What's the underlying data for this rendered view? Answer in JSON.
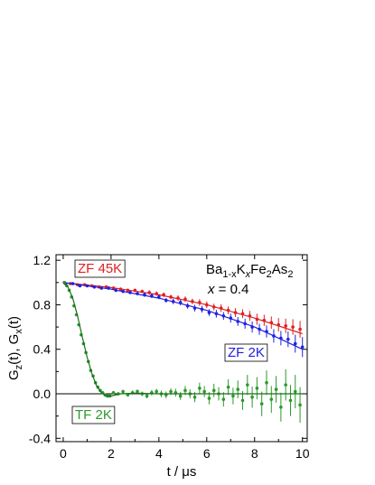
{
  "chart_data": {
    "type": "scatter",
    "xlabel": "t / μs",
    "ylabel": "G_z(t), G_x(t)",
    "xlim": [
      -0.3,
      10.2
    ],
    "ylim": [
      -0.43,
      1.25
    ],
    "x_ticks": [
      0,
      2,
      4,
      6,
      8,
      10
    ],
    "y_ticks": [
      -0.4,
      0.0,
      0.4,
      0.8,
      1.2
    ],
    "x_tick_labels": [
      "0",
      "2",
      "4",
      "6",
      "8",
      "10"
    ],
    "y_tick_labels": [
      "-0.4",
      "0.0",
      "0.4",
      "0.8",
      "1.2"
    ],
    "zero_line": true,
    "compound_label": "Ba1-xKxFe2As2",
    "doping_label": "x = 0.4",
    "series": [
      {
        "name": "ZF 45K",
        "color": "#e02020",
        "points": [
          [
            0.05,
            1.0
          ],
          [
            0.3,
            0.99
          ],
          [
            0.6,
            0.98
          ],
          [
            0.9,
            0.98
          ],
          [
            1.2,
            0.97
          ],
          [
            1.5,
            0.96
          ],
          [
            1.8,
            0.96
          ],
          [
            2.1,
            0.95
          ],
          [
            2.4,
            0.94
          ],
          [
            2.7,
            0.93
          ],
          [
            3.0,
            0.93
          ],
          [
            3.3,
            0.92
          ],
          [
            3.6,
            0.91
          ],
          [
            3.9,
            0.9
          ],
          [
            4.2,
            0.89
          ],
          [
            4.5,
            0.87
          ],
          [
            4.8,
            0.86
          ],
          [
            5.1,
            0.85
          ],
          [
            5.4,
            0.83
          ],
          [
            5.7,
            0.82
          ],
          [
            6.0,
            0.8
          ],
          [
            6.3,
            0.78
          ],
          [
            6.6,
            0.77
          ],
          [
            6.9,
            0.75
          ],
          [
            7.2,
            0.73
          ],
          [
            7.5,
            0.72
          ],
          [
            7.8,
            0.7
          ],
          [
            8.1,
            0.67
          ],
          [
            8.4,
            0.66
          ],
          [
            8.7,
            0.64
          ],
          [
            9.0,
            0.62
          ],
          [
            9.3,
            0.61
          ],
          [
            9.6,
            0.6
          ],
          [
            9.9,
            0.58
          ]
        ],
        "errors": [
          0.01,
          0.01,
          0.01,
          0.01,
          0.01,
          0.01,
          0.01,
          0.01,
          0.015,
          0.015,
          0.015,
          0.015,
          0.02,
          0.02,
          0.02,
          0.02,
          0.025,
          0.025,
          0.025,
          0.03,
          0.03,
          0.03,
          0.035,
          0.035,
          0.04,
          0.04,
          0.045,
          0.05,
          0.05,
          0.055,
          0.06,
          0.065,
          0.07,
          0.075
        ],
        "fit": [
          [
            0,
            1.0
          ],
          [
            2,
            0.955
          ],
          [
            4,
            0.89
          ],
          [
            6,
            0.8
          ],
          [
            8,
            0.68
          ],
          [
            10,
            0.54
          ]
        ]
      },
      {
        "name": "ZF 2K",
        "color": "#2020e0",
        "points": [
          [
            0.1,
            0.99
          ],
          [
            0.4,
            0.99
          ],
          [
            0.7,
            0.97
          ],
          [
            1.0,
            0.97
          ],
          [
            1.3,
            0.96
          ],
          [
            1.6,
            0.95
          ],
          [
            1.9,
            0.95
          ],
          [
            2.2,
            0.93
          ],
          [
            2.5,
            0.92
          ],
          [
            2.8,
            0.91
          ],
          [
            3.1,
            0.9
          ],
          [
            3.4,
            0.89
          ],
          [
            3.7,
            0.88
          ],
          [
            4.0,
            0.87
          ],
          [
            4.3,
            0.84
          ],
          [
            4.6,
            0.83
          ],
          [
            4.9,
            0.82
          ],
          [
            5.2,
            0.79
          ],
          [
            5.5,
            0.77
          ],
          [
            5.8,
            0.76
          ],
          [
            6.1,
            0.73
          ],
          [
            6.4,
            0.72
          ],
          [
            6.7,
            0.7
          ],
          [
            7.0,
            0.68
          ],
          [
            7.3,
            0.65
          ],
          [
            7.6,
            0.63
          ],
          [
            7.9,
            0.6
          ],
          [
            8.2,
            0.58
          ],
          [
            8.5,
            0.56
          ],
          [
            8.8,
            0.52
          ],
          [
            9.1,
            0.5
          ],
          [
            9.4,
            0.49
          ],
          [
            9.7,
            0.45
          ],
          [
            10.0,
            0.42
          ]
        ],
        "errors": [
          0.01,
          0.01,
          0.01,
          0.01,
          0.01,
          0.01,
          0.01,
          0.015,
          0.015,
          0.015,
          0.015,
          0.02,
          0.02,
          0.02,
          0.02,
          0.025,
          0.025,
          0.025,
          0.03,
          0.03,
          0.03,
          0.035,
          0.035,
          0.04,
          0.04,
          0.045,
          0.05,
          0.05,
          0.055,
          0.06,
          0.065,
          0.07,
          0.08,
          0.09
        ],
        "fit": [
          [
            0,
            1.0
          ],
          [
            2,
            0.94
          ],
          [
            4,
            0.86
          ],
          [
            6,
            0.75
          ],
          [
            8,
            0.6
          ],
          [
            10,
            0.4
          ]
        ]
      },
      {
        "name": "TF 2K",
        "color": "#2a9a2a",
        "points": [
          [
            0.05,
            1.0
          ],
          [
            0.15,
            0.97
          ],
          [
            0.25,
            0.93
          ],
          [
            0.35,
            0.87
          ],
          [
            0.45,
            0.79
          ],
          [
            0.55,
            0.71
          ],
          [
            0.65,
            0.62
          ],
          [
            0.75,
            0.53
          ],
          [
            0.85,
            0.45
          ],
          [
            0.95,
            0.37
          ],
          [
            1.05,
            0.29
          ],
          [
            1.15,
            0.21
          ],
          [
            1.25,
            0.16
          ],
          [
            1.35,
            0.1
          ],
          [
            1.45,
            0.06
          ],
          [
            1.55,
            0.03
          ],
          [
            1.65,
            0.01
          ],
          [
            1.75,
            -0.01
          ],
          [
            1.85,
            -0.02
          ],
          [
            1.95,
            -0.02
          ],
          [
            2.1,
            0.01
          ],
          [
            2.3,
            0.0
          ],
          [
            2.5,
            0.02
          ],
          [
            2.7,
            -0.01
          ],
          [
            2.9,
            0.01
          ],
          [
            3.1,
            0.02
          ],
          [
            3.3,
            0.0
          ],
          [
            3.5,
            -0.02
          ],
          [
            3.7,
            0.01
          ],
          [
            3.9,
            0.02
          ],
          [
            4.1,
            0.0
          ],
          [
            4.3,
            -0.01
          ],
          [
            4.5,
            0.02
          ],
          [
            4.7,
            0.01
          ],
          [
            4.9,
            -0.02
          ],
          [
            5.1,
            0.03
          ],
          [
            5.3,
            0.0
          ],
          [
            5.5,
            -0.03
          ],
          [
            5.7,
            0.05
          ],
          [
            5.9,
            0.02
          ],
          [
            6.1,
            -0.04
          ],
          [
            6.3,
            0.03
          ],
          [
            6.5,
            0.0
          ],
          [
            6.7,
            -0.05
          ],
          [
            6.9,
            0.06
          ],
          [
            7.1,
            -0.02
          ],
          [
            7.3,
            0.04
          ],
          [
            7.5,
            -0.06
          ],
          [
            7.7,
            0.08
          ],
          [
            7.9,
            -0.03
          ],
          [
            8.1,
            0.05
          ],
          [
            8.3,
            -0.09
          ],
          [
            8.5,
            0.1
          ],
          [
            8.7,
            -0.05
          ],
          [
            8.9,
            0.04
          ],
          [
            9.1,
            -0.12
          ],
          [
            9.3,
            0.08
          ],
          [
            9.5,
            -0.06
          ],
          [
            9.7,
            0.02
          ],
          [
            9.9,
            -0.1
          ]
        ],
        "errors": [
          0.01,
          0.01,
          0.01,
          0.01,
          0.01,
          0.01,
          0.01,
          0.01,
          0.01,
          0.01,
          0.01,
          0.01,
          0.01,
          0.01,
          0.01,
          0.01,
          0.01,
          0.01,
          0.01,
          0.01,
          0.015,
          0.015,
          0.015,
          0.015,
          0.02,
          0.02,
          0.02,
          0.02,
          0.025,
          0.025,
          0.03,
          0.03,
          0.03,
          0.035,
          0.035,
          0.04,
          0.04,
          0.045,
          0.05,
          0.05,
          0.055,
          0.06,
          0.06,
          0.065,
          0.07,
          0.075,
          0.08,
          0.085,
          0.09,
          0.095,
          0.1,
          0.11,
          0.11,
          0.12,
          0.12,
          0.13,
          0.14,
          0.14,
          0.15,
          0.16
        ],
        "fit": [
          [
            0,
            1.0
          ],
          [
            0.2,
            0.96
          ],
          [
            0.4,
            0.86
          ],
          [
            0.6,
            0.7
          ],
          [
            0.8,
            0.51
          ],
          [
            1.0,
            0.33
          ],
          [
            1.2,
            0.18
          ],
          [
            1.4,
            0.07
          ],
          [
            1.6,
            0.01
          ],
          [
            1.8,
            -0.02
          ],
          [
            2.0,
            -0.02
          ],
          [
            2.4,
            0.0
          ],
          [
            3.0,
            0.005
          ],
          [
            4.0,
            0.0
          ],
          [
            10.0,
            0.0
          ]
        ]
      }
    ]
  }
}
